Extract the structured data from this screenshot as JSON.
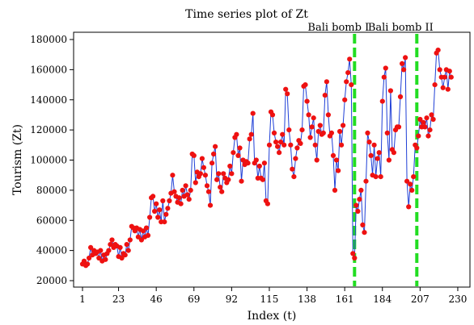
{
  "chart_data": {
    "type": "line",
    "title": "Time series plot of Zt",
    "xlabel": "Index (t)",
    "ylabel": "Tourism (Zt)",
    "xlim": [
      1,
      232
    ],
    "ylim": [
      20000,
      180000
    ],
    "x_ticks": [
      1,
      23,
      46,
      69,
      92,
      115,
      138,
      161,
      184,
      207,
      230
    ],
    "y_ticks": [
      20000,
      40000,
      60000,
      80000,
      100000,
      120000,
      140000,
      160000,
      180000
    ],
    "y_tick_labels": [
      "20000",
      "40000",
      "60000",
      "80000",
      "100000",
      "120000",
      "140000",
      "160000",
      "180000"
    ],
    "grid": false,
    "series": [
      {
        "line_color": "#1f3fd6",
        "marker_color": "#ee1111",
        "x_start": 1,
        "values": [
          31000,
          33000,
          30000,
          31000,
          35000,
          42000,
          37000,
          40000,
          38000,
          39000,
          35000,
          40000,
          33000,
          37000,
          34000,
          38000,
          40000,
          44000,
          47000,
          42000,
          44000,
          43000,
          36000,
          42000,
          35000,
          38000,
          37000,
          44000,
          40000,
          47000,
          56000,
          55000,
          53000,
          55000,
          49000,
          54000,
          47000,
          53000,
          49000,
          55000,
          50000,
          62000,
          75000,
          76000,
          66000,
          71000,
          62000,
          67000,
          59000,
          73000,
          59000,
          64000,
          68000,
          73000,
          78000,
          90000,
          79000,
          76000,
          72000,
          75000,
          71000,
          80000,
          76000,
          83000,
          77000,
          74000,
          80000,
          104000,
          103000,
          85000,
          92000,
          89000,
          91000,
          101000,
          95000,
          90000,
          83000,
          79000,
          70000,
          98000,
          104000,
          109000,
          87000,
          91000,
          82000,
          79000,
          91000,
          88000,
          85000,
          87000,
          96000,
          91000,
          105000,
          115000,
          117000,
          103000,
          108000,
          86000,
          100000,
          97000,
          99000,
          98000,
          114000,
          117000,
          131000,
          98000,
          100000,
          88000,
          96000,
          88000,
          87000,
          98000,
          73000,
          71000,
          110000,
          132000,
          130000,
          118000,
          112000,
          109000,
          105000,
          112000,
          117000,
          110000,
          147000,
          144000,
          120000,
          110000,
          94000,
          89000,
          101000,
          108000,
          113000,
          111000,
          120000,
          149000,
          150000,
          139000,
          130000,
          115000,
          122000,
          128000,
          110000,
          100000,
          119000,
          123000,
          117000,
          118000,
          143000,
          152000,
          130000,
          116000,
          118000,
          103000,
          80000,
          100000,
          93000,
          119000,
          110000,
          123000,
          140000,
          152000,
          158000,
          167000,
          150000,
          38000,
          35000,
          70000,
          66000,
          74000,
          80000,
          57000,
          52000,
          86000,
          118000,
          112000,
          103000,
          90000,
          110000,
          89000,
          101000,
          105000,
          89000,
          139000,
          155000,
          161000,
          118000,
          100000,
          146000,
          107000,
          105000,
          120000,
          122000,
          122000,
          142000,
          164000,
          160000,
          168000,
          86000,
          69000,
          84000,
          80000,
          89000,
          110000,
          108000,
          116000,
          127000,
          122000,
          125000,
          122000,
          128000,
          116000,
          120000,
          130000,
          127000,
          150000,
          171000,
          173000,
          160000,
          155000,
          148000,
          155000,
          160000,
          147000,
          159000,
          155000
        ]
      }
    ],
    "annotations": [
      {
        "label": "Bali bomb I",
        "x": 167,
        "line_color": "#22dd22"
      },
      {
        "label": "Bali bomb II",
        "x": 205,
        "line_color": "#22dd22"
      }
    ]
  }
}
